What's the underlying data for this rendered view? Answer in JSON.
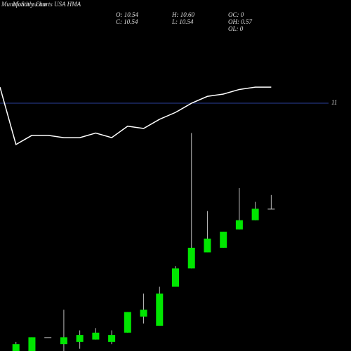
{
  "chart_data": {
    "type": "candlestick",
    "title": "Monthly Charts USA HMA",
    "watermark": "MunafaSutra.com",
    "info": [
      "O: 10.54",
      "H: 10.60",
      "C: 10.54",
      "L: 10.54",
      "OC: 0",
      "OH: 0.57",
      "OL: 0"
    ],
    "xlim": [
      0,
      22
    ],
    "ylim": [
      9.92,
      11.45
    ],
    "yticks": [
      11
    ],
    "up_color": "#00e600",
    "down_color": "#ff0000",
    "flat_color": "#cccccc",
    "wick_color": "#bbbbbb",
    "grid_color": "#2a3f9a",
    "x": [
      1,
      2,
      3,
      4,
      5,
      6,
      7,
      8,
      9,
      10,
      11,
      12,
      13,
      14,
      15,
      16,
      17
    ],
    "open": [
      9.92,
      9.92,
      9.98,
      9.95,
      9.96,
      9.97,
      9.96,
      10.0,
      10.07,
      10.03,
      10.2,
      10.28,
      10.35,
      10.37,
      10.45,
      10.49,
      10.54
    ],
    "close": [
      9.95,
      9.98,
      9.98,
      9.98,
      9.99,
      10.0,
      9.99,
      10.09,
      10.1,
      10.17,
      10.28,
      10.37,
      10.41,
      10.44,
      10.49,
      10.54,
      10.54
    ],
    "high": [
      9.96,
      9.98,
      9.98,
      10.1,
      10.01,
      10.02,
      10.01,
      10.09,
      10.17,
      10.2,
      10.29,
      10.87,
      10.53,
      10.44,
      10.63,
      10.57,
      10.6
    ],
    "low": [
      9.92,
      9.92,
      9.98,
      9.92,
      9.93,
      9.97,
      9.95,
      10.0,
      10.04,
      10.03,
      10.2,
      10.28,
      10.35,
      10.37,
      10.45,
      10.49,
      10.54
    ],
    "line": {
      "color": "#ffffff",
      "x": [
        0,
        1,
        2,
        3,
        4,
        5,
        6,
        7,
        8,
        9,
        10,
        11,
        12,
        13,
        14,
        15,
        16,
        17
      ],
      "values": [
        11.07,
        10.82,
        10.86,
        10.86,
        10.85,
        10.85,
        10.87,
        10.85,
        10.9,
        10.89,
        10.93,
        10.96,
        11.0,
        11.03,
        11.04,
        11.06,
        11.07,
        11.07
      ]
    }
  }
}
